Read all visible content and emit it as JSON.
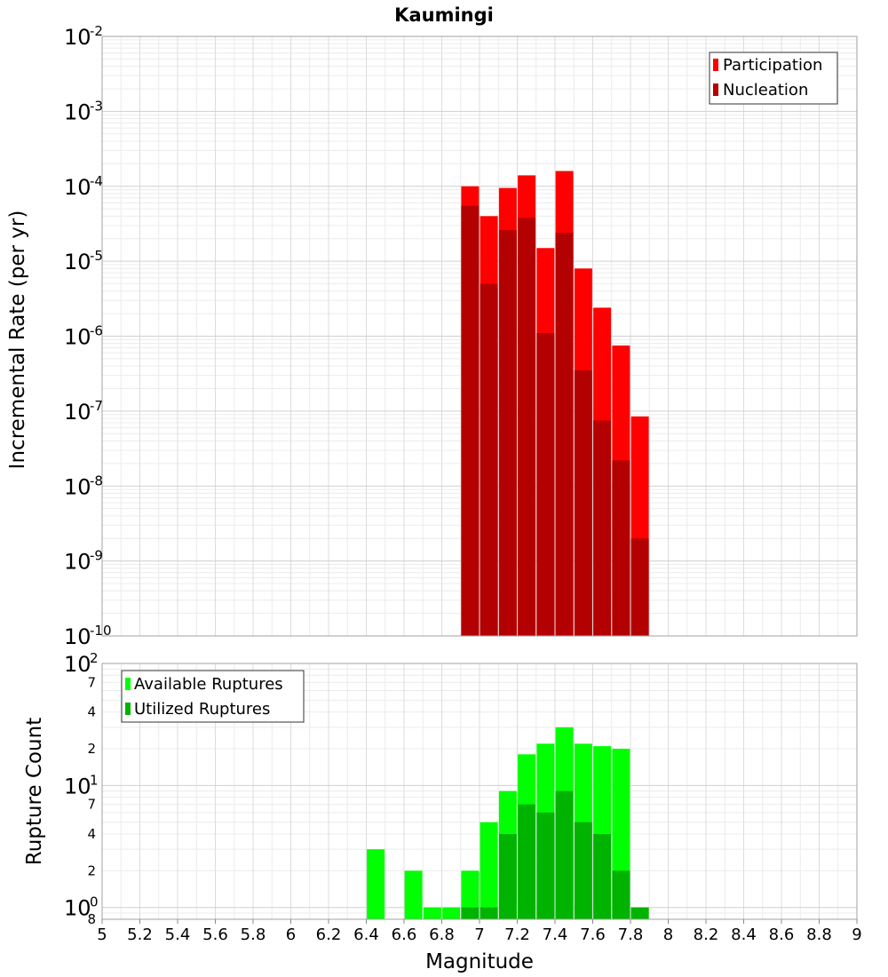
{
  "title": "Kaumingi",
  "chart_data": [
    {
      "type": "bar",
      "ylabel": "Incremental Rate (per yr)",
      "yscale": "log",
      "ylim": [
        1e-10,
        0.01
      ],
      "xlim": [
        5,
        9
      ],
      "grid": true,
      "legend_position": "top-right",
      "y_tick_exponents": [
        "-2",
        "-3",
        "-4",
        "-5",
        "-6",
        "-7",
        "-8",
        "-9",
        "-10"
      ],
      "x": [
        6.95,
        7.05,
        7.15,
        7.25,
        7.35,
        7.45,
        7.55,
        7.65,
        7.75,
        7.85
      ],
      "series": [
        {
          "name": "Participation",
          "color": "#ff0000",
          "values": [
            0.0001,
            4e-05,
            9.5e-05,
            0.00014,
            1.5e-05,
            0.00016,
            8e-06,
            2.4e-06,
            7.5e-07,
            8.5e-08
          ]
        },
        {
          "name": "Nucleation",
          "color": "#b30000",
          "values": [
            5.5e-05,
            5e-06,
            2.6e-05,
            3.8e-05,
            1.1e-06,
            2.4e-05,
            3.5e-07,
            7.5e-08,
            2.2e-08,
            2e-09
          ]
        }
      ]
    },
    {
      "type": "bar",
      "xlabel": "Magnitude",
      "ylabel": "Rupture Count",
      "yscale": "log",
      "ylim": [
        0.8,
        100
      ],
      "xlim": [
        5,
        9
      ],
      "grid": true,
      "legend_position": "top-left",
      "x_ticks": [
        "5",
        "5.2",
        "5.4",
        "5.6",
        "5.8",
        "6",
        "6.2",
        "6.4",
        "6.6",
        "6.8",
        "7",
        "7.2",
        "7.4",
        "7.6",
        "7.8",
        "8",
        "8.2",
        "8.4",
        "8.6",
        "8.8",
        "9"
      ],
      "y_major_ticks": [
        {
          "value": 100,
          "base": "10",
          "exp": "2"
        },
        {
          "value": 10,
          "base": "10",
          "exp": "1"
        },
        {
          "value": 1,
          "base": "10",
          "exp": "0"
        }
      ],
      "y_minor_labels": [
        {
          "value": 70,
          "label": "7"
        },
        {
          "value": 40,
          "label": "4"
        },
        {
          "value": 20,
          "label": "2"
        },
        {
          "value": 7,
          "label": "7"
        },
        {
          "value": 4,
          "label": "4"
        },
        {
          "value": 2,
          "label": "2"
        },
        {
          "value": 0.8,
          "label": "8"
        }
      ],
      "x": [
        6.45,
        6.65,
        6.75,
        6.85,
        6.95,
        7.05,
        7.15,
        7.25,
        7.35,
        7.45,
        7.55,
        7.65,
        7.75,
        7.85
      ],
      "series": [
        {
          "name": "Available Ruptures",
          "color": "#00ff00",
          "values": [
            3,
            2,
            1,
            1,
            2,
            5,
            9,
            18,
            22,
            30,
            22,
            21,
            20,
            1
          ]
        },
        {
          "name": "Utilized Ruptures",
          "color": "#00b300",
          "values": [
            0,
            0,
            0,
            0,
            1,
            1,
            4,
            7,
            6,
            9,
            5,
            4,
            2,
            1
          ]
        }
      ]
    }
  ]
}
